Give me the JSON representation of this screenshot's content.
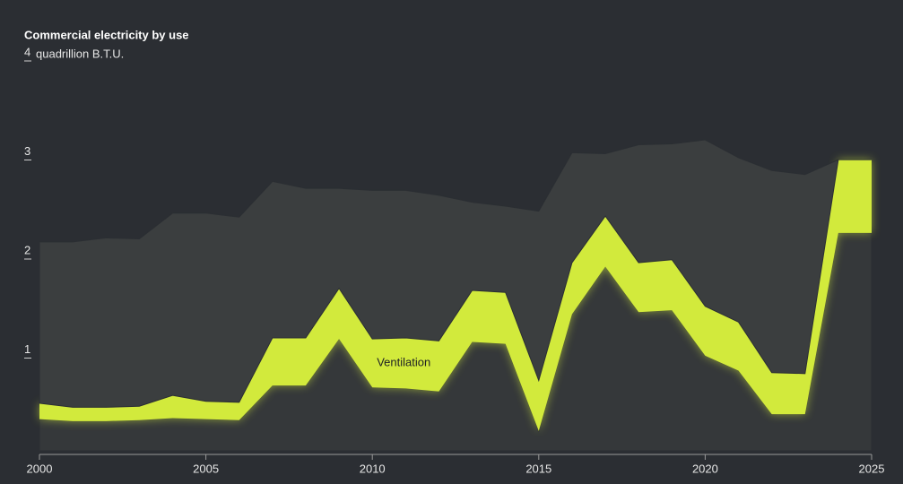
{
  "chart_data": {
    "type": "stacked-area",
    "title": "Commercial electricity by use",
    "y_unit": "quadrillion B.T.U.",
    "x": [
      2000,
      2001,
      2002,
      2003,
      2004,
      2005,
      2006,
      2007,
      2008,
      2009,
      2010,
      2011,
      2012,
      2013,
      2014,
      2015,
      2016,
      2017,
      2018,
      2019,
      2020,
      2021,
      2022,
      2023,
      2024,
      2025
    ],
    "series": [
      {
        "color": "#35383a",
        "values": [
          0.32,
          0.3,
          0.3,
          0.31,
          0.33,
          0.32,
          0.31,
          0.66,
          0.66,
          1.13,
          0.64,
          0.63,
          0.6,
          1.1,
          1.08,
          0.2,
          1.38,
          1.86,
          1.4,
          1.42,
          0.96,
          0.81,
          0.37,
          0.37,
          2.2,
          2.2
        ]
      },
      {
        "name": "Ventilation",
        "color": "#d2ea3c",
        "values": [
          0.16,
          0.14,
          0.14,
          0.14,
          0.23,
          0.18,
          0.18,
          0.48,
          0.48,
          0.51,
          0.49,
          0.51,
          0.51,
          0.52,
          0.52,
          0.51,
          0.52,
          0.51,
          0.5,
          0.51,
          0.5,
          0.49,
          0.42,
          0.41,
          0.74,
          0.74
        ]
      },
      {
        "color": "#3b3e3f",
        "values": [
          1.63,
          1.67,
          1.71,
          1.69,
          1.84,
          1.9,
          1.87,
          1.58,
          1.51,
          1.01,
          1.5,
          1.49,
          1.47,
          0.89,
          0.87,
          1.71,
          1.11,
          0.63,
          1.19,
          1.17,
          1.68,
          1.66,
          2.04,
          2.01,
          0,
          0
        ]
      }
    ],
    "xlim": [
      2000,
      2025
    ],
    "xticks": [
      2000,
      2005,
      2010,
      2015,
      2020,
      2025
    ],
    "ylim": [
      0,
      4
    ],
    "yticks": [
      1,
      2,
      3,
      4
    ]
  }
}
